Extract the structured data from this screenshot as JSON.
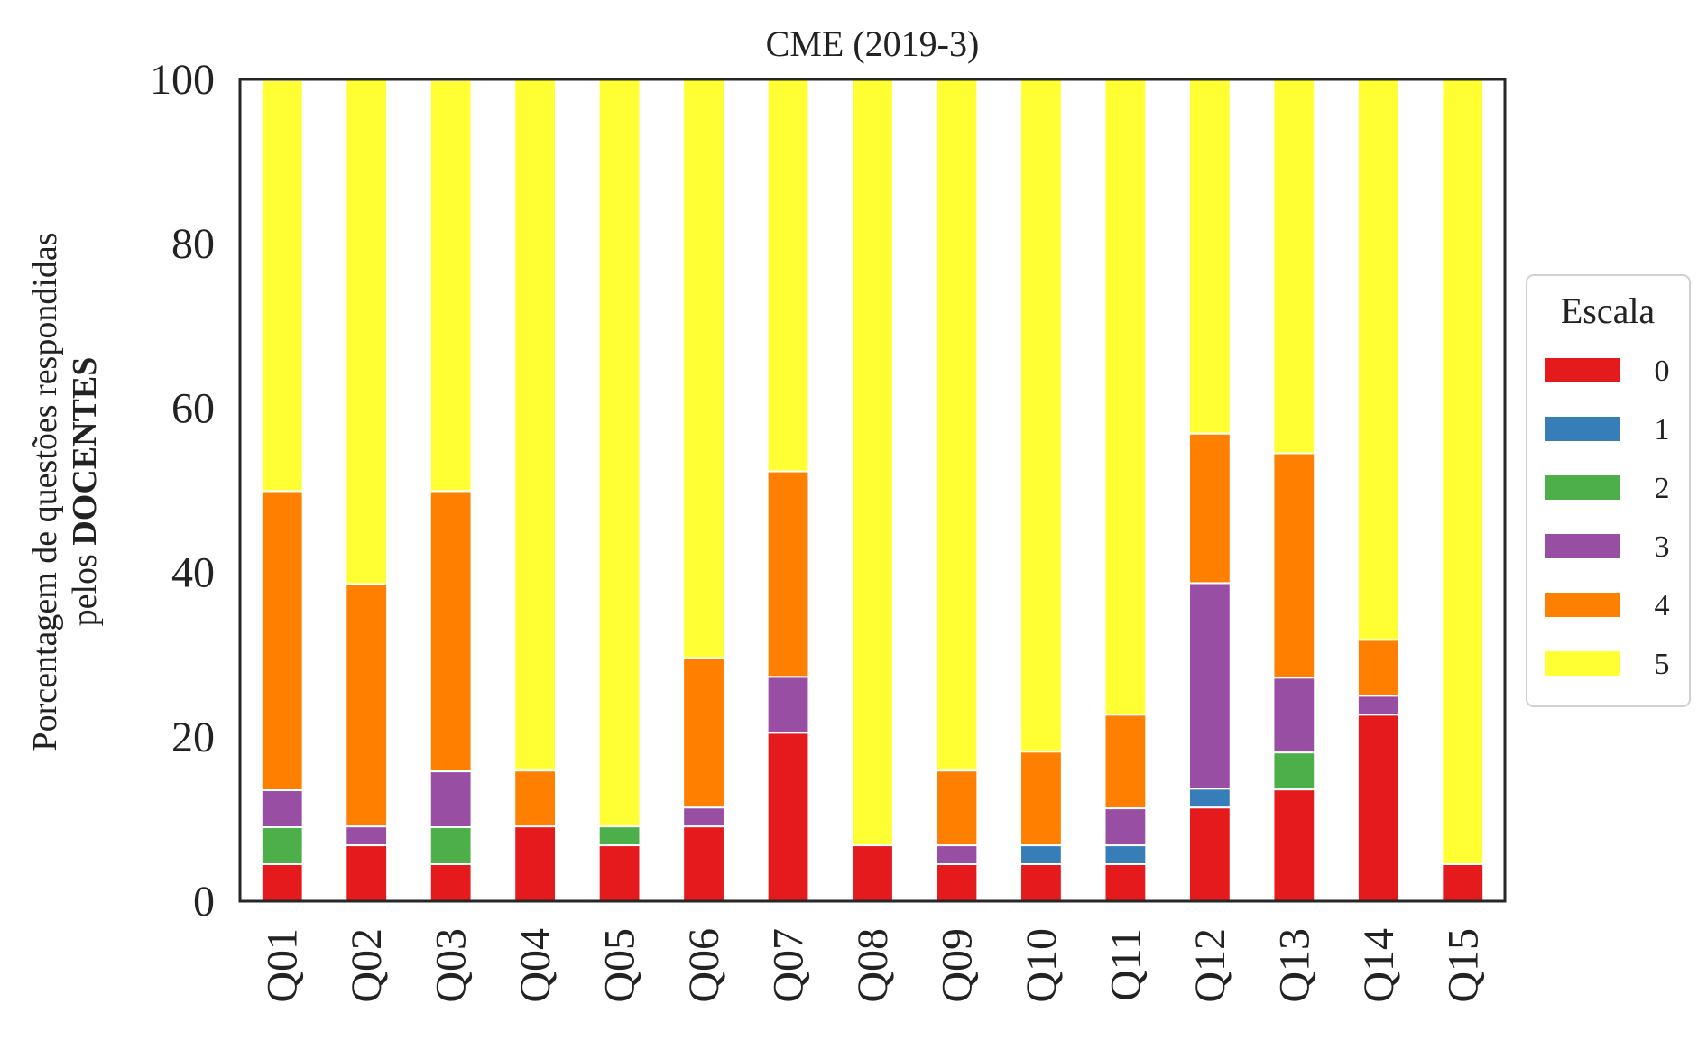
{
  "chart_data": {
    "type": "bar",
    "stacked": true,
    "title": "CME (2019-3)",
    "ylabel_line1": "Porcentagem de questões respondidas",
    "ylabel_line2_prefix": "pelos ",
    "ylabel_line2_bold": "DOCENTES",
    "xlabel": "",
    "ylim": [
      0,
      100
    ],
    "yticks": [
      "0",
      "20",
      "40",
      "60",
      "80",
      "100"
    ],
    "ytick_values": [
      0,
      20,
      40,
      60,
      80,
      100
    ],
    "grid": false,
    "legend": {
      "title": "Escala",
      "placement": "right"
    },
    "categories": [
      "Q01",
      "Q02",
      "Q03",
      "Q04",
      "Q05",
      "Q06",
      "Q07",
      "Q08",
      "Q09",
      "Q10",
      "Q11",
      "Q12",
      "Q13",
      "Q14",
      "Q15"
    ],
    "series": [
      {
        "name": "0",
        "color": "#e41a1c",
        "values": [
          4.5,
          6.8,
          4.5,
          9.1,
          6.8,
          9.1,
          20.5,
          6.8,
          4.5,
          4.5,
          4.5,
          11.4,
          13.6,
          22.7,
          4.5
        ]
      },
      {
        "name": "1",
        "color": "#377eb8",
        "values": [
          0,
          0,
          0,
          0,
          0,
          0,
          0,
          0,
          0,
          2.3,
          2.3,
          2.3,
          0,
          0,
          0
        ]
      },
      {
        "name": "2",
        "color": "#4daf4a",
        "values": [
          4.5,
          0,
          4.5,
          0,
          2.3,
          0,
          0,
          0,
          0,
          0,
          0,
          0,
          4.5,
          0,
          0
        ]
      },
      {
        "name": "3",
        "color": "#984ea3",
        "values": [
          4.5,
          2.3,
          6.8,
          0,
          0,
          2.3,
          6.8,
          0,
          2.3,
          0,
          4.5,
          25.0,
          9.1,
          2.3,
          0
        ]
      },
      {
        "name": "4",
        "color": "#ff7f00",
        "values": [
          36.4,
          29.5,
          34.1,
          6.8,
          0,
          18.2,
          25.0,
          0,
          9.1,
          11.4,
          11.4,
          18.2,
          27.3,
          6.8,
          0
        ]
      },
      {
        "name": "5",
        "color": "#ffff33",
        "values": [
          50.0,
          61.4,
          50.0,
          84.1,
          90.9,
          70.5,
          47.7,
          93.2,
          84.1,
          81.8,
          77.3,
          43.2,
          45.5,
          68.2,
          95.5
        ]
      }
    ]
  }
}
